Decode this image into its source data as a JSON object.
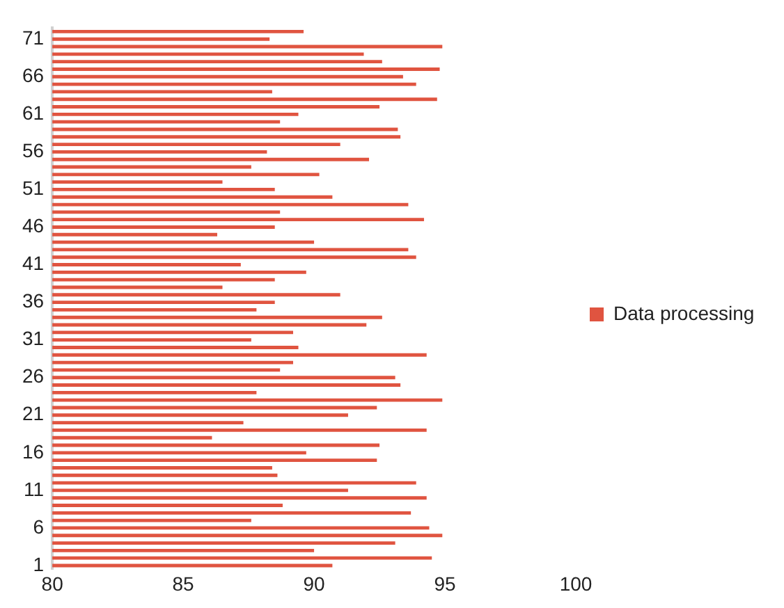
{
  "chart_data": {
    "type": "bar",
    "orientation": "horizontal",
    "categories": [
      null,
      "71",
      null,
      null,
      null,
      null,
      "66",
      null,
      null,
      null,
      null,
      "61",
      null,
      null,
      null,
      null,
      "56",
      null,
      null,
      null,
      null,
      "51",
      null,
      null,
      null,
      null,
      "46",
      null,
      null,
      null,
      null,
      "41",
      null,
      null,
      null,
      null,
      "36",
      null,
      null,
      null,
      null,
      "31",
      null,
      null,
      null,
      null,
      "26",
      null,
      null,
      null,
      null,
      "21",
      null,
      null,
      null,
      null,
      "16",
      null,
      null,
      null,
      null,
      "11",
      null,
      null,
      null,
      null,
      "6",
      null,
      null,
      null,
      null,
      "1"
    ],
    "series": [
      {
        "name": "Data processing",
        "color": "#e05440",
        "values": [
          89.6,
          88.3,
          94.9,
          91.9,
          92.6,
          94.8,
          93.4,
          93.9,
          88.4,
          94.7,
          92.5,
          89.4,
          88.7,
          93.2,
          93.3,
          91.0,
          88.2,
          92.1,
          87.6,
          90.2,
          86.5,
          88.5,
          90.7,
          93.6,
          88.7,
          94.2,
          88.5,
          86.3,
          90.0,
          93.6,
          93.9,
          87.2,
          89.7,
          88.5,
          86.5,
          91.0,
          88.5,
          87.8,
          92.6,
          92.0,
          89.2,
          87.6,
          89.4,
          94.3,
          89.2,
          88.7,
          93.1,
          93.3,
          87.8,
          94.9,
          92.4,
          91.3,
          87.3,
          94.3,
          86.1,
          92.5,
          89.7,
          92.4,
          88.4,
          88.6,
          93.9,
          91.3,
          94.3,
          88.8,
          93.7,
          87.6,
          94.4,
          94.9,
          93.1,
          90.0,
          94.5,
          90.7
        ]
      }
    ],
    "xlim": [
      80,
      100
    ],
    "xticks": [
      80,
      85,
      90,
      95,
      100
    ],
    "grid": false,
    "legend": "right"
  }
}
